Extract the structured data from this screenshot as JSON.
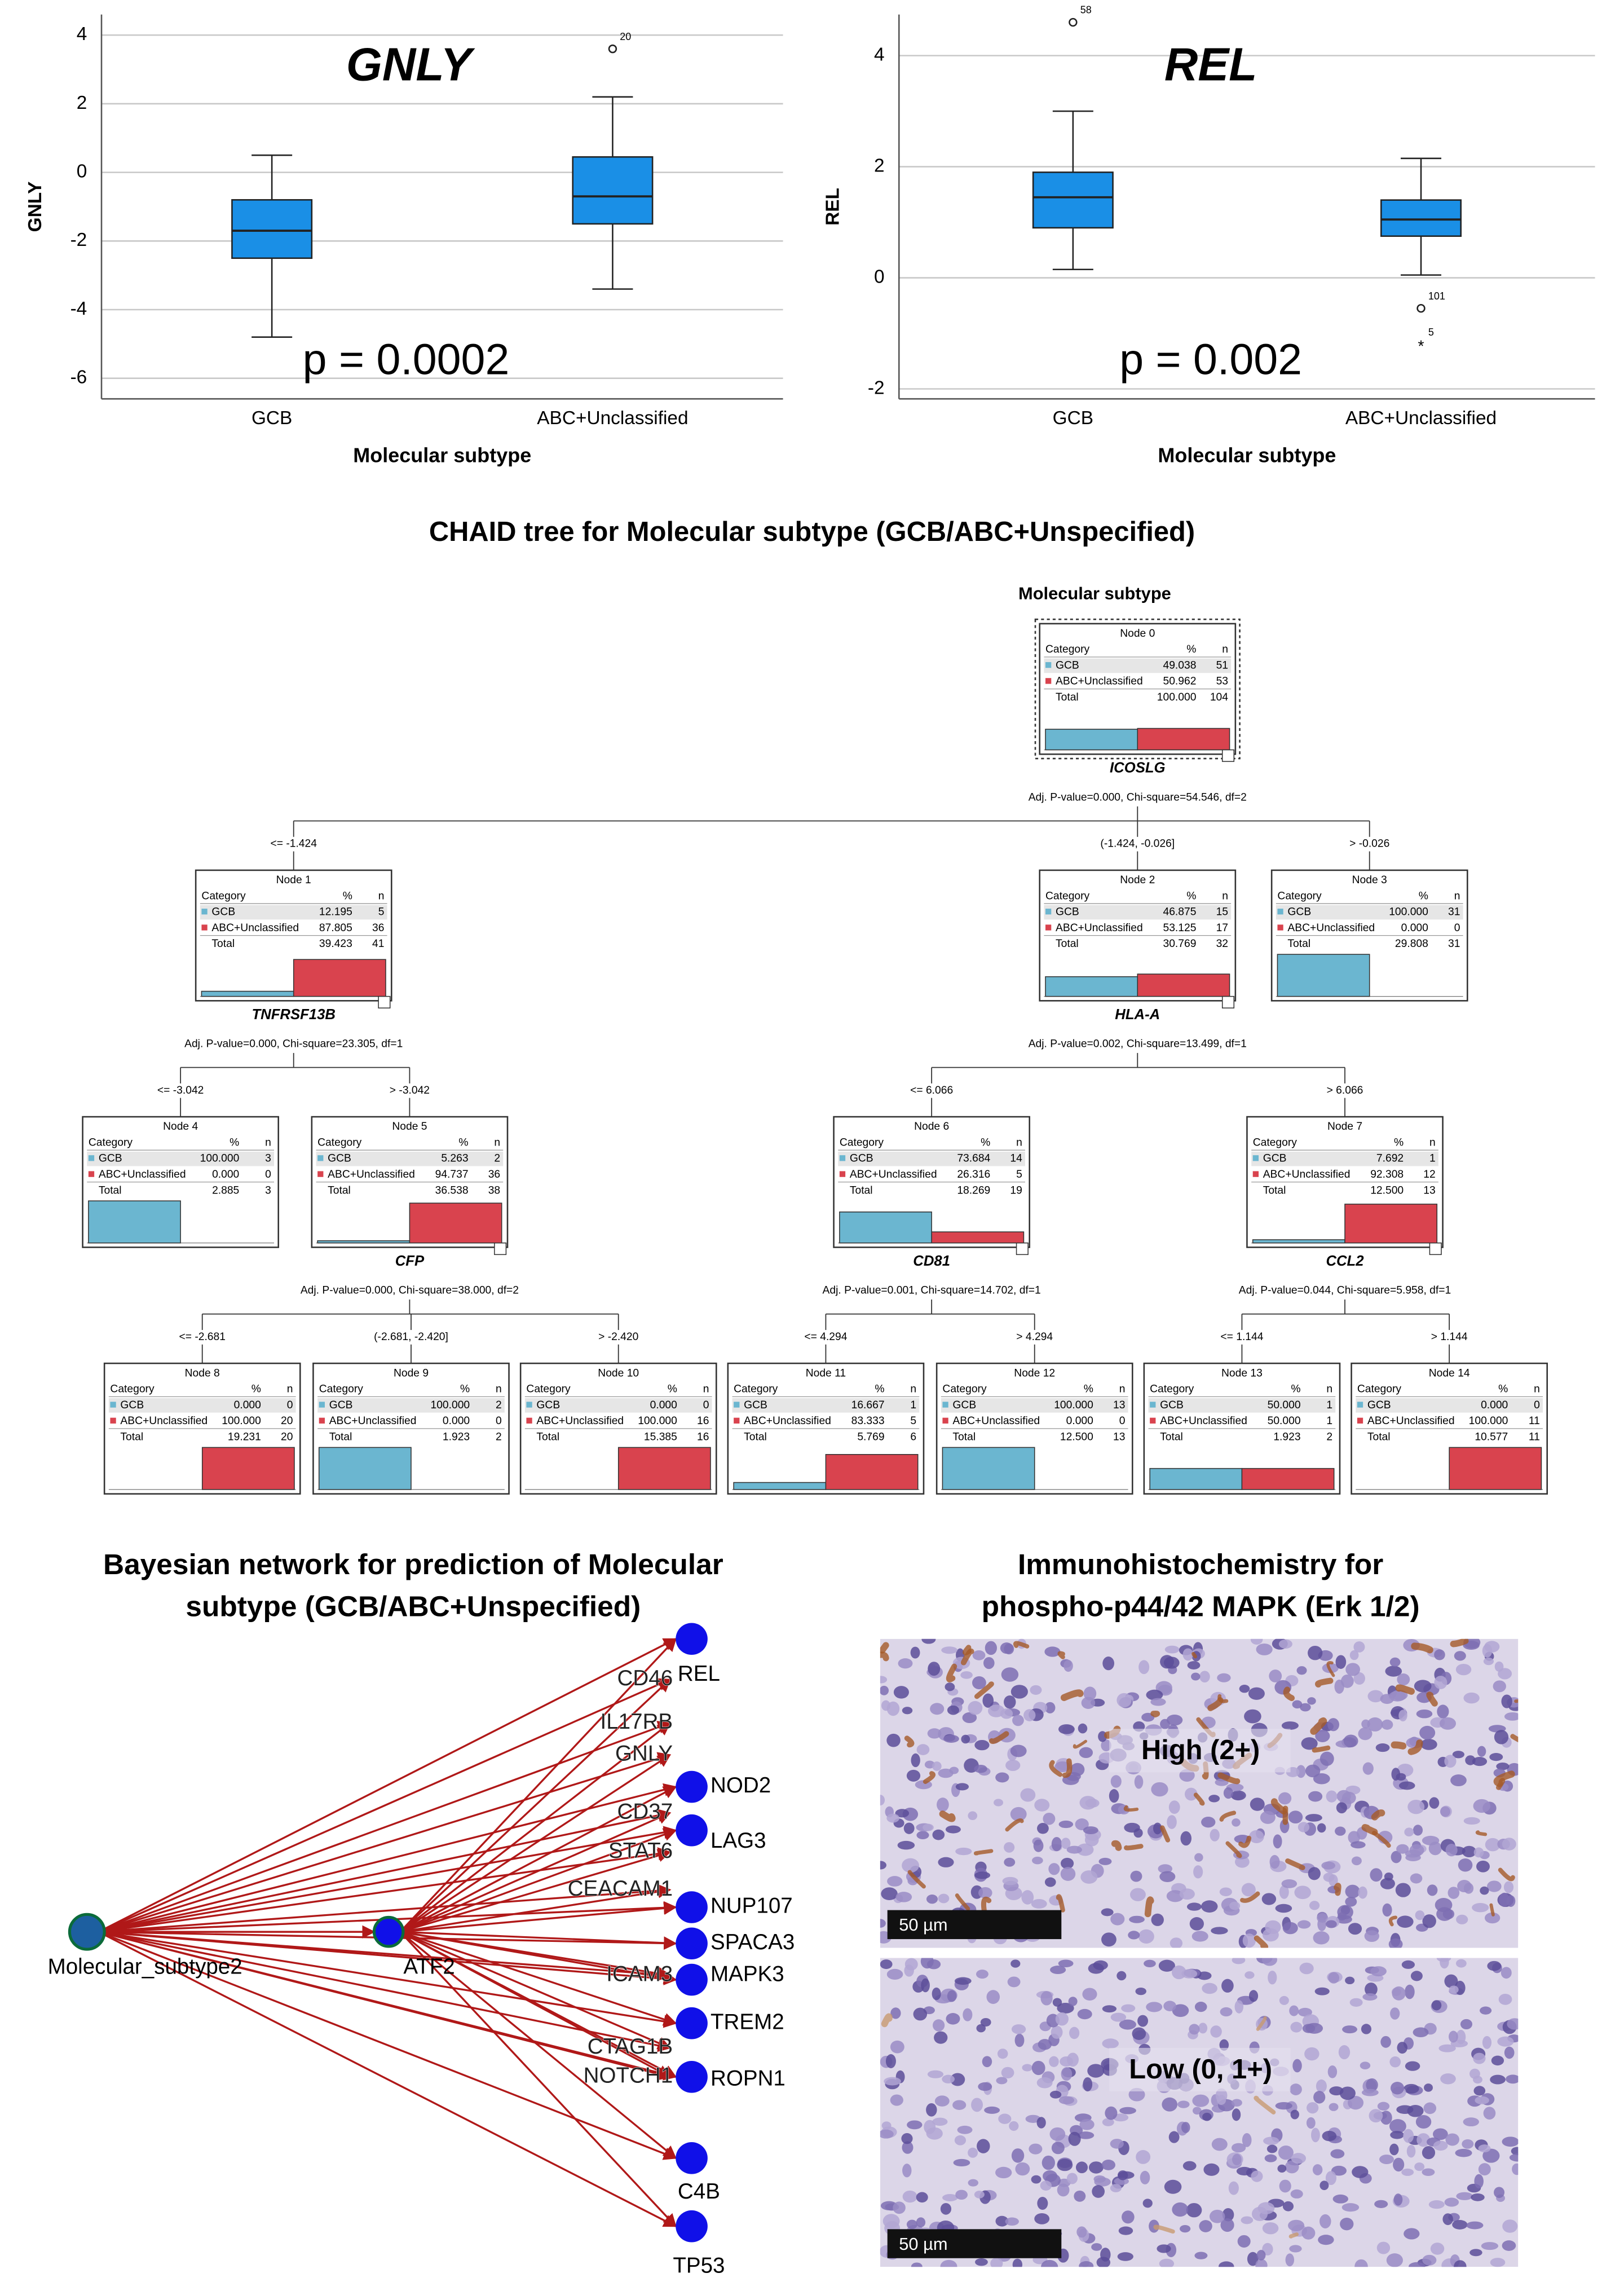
{
  "chart_data": [
    {
      "type": "box",
      "title": "GNLY",
      "y_label": "GNLY",
      "x_label": "Molecular subtype",
      "annotation": "p = 0.0002",
      "categories": [
        "GCB",
        "ABC+Unclassified"
      ],
      "color": "#1a8fe6",
      "grid": true,
      "ylim": [
        -6.6,
        4.6
      ],
      "yticks": [
        -6,
        -4,
        -2,
        0,
        2,
        4
      ],
      "boxes": [
        {
          "min": -4.8,
          "q1": -2.5,
          "median": -1.7,
          "q3": -0.8,
          "max": 0.5,
          "outliers": []
        },
        {
          "min": -3.4,
          "q1": -1.5,
          "median": -0.7,
          "q3": 0.45,
          "max": 2.2,
          "outliers": [
            {
              "value": 3.6,
              "case": "20",
              "marker": "circle"
            }
          ]
        }
      ]
    },
    {
      "type": "box",
      "title": "REL",
      "y_label": "REL",
      "x_label": "Molecular subtype",
      "annotation": "p = 0.002",
      "categories": [
        "GCB",
        "ABC+Unclassified"
      ],
      "color": "#1a8fe6",
      "grid": true,
      "ylim": [
        -2.18,
        4.74
      ],
      "yticks": [
        -2,
        0,
        2,
        4
      ],
      "boxes": [
        {
          "min": 0.15,
          "q1": 0.9,
          "median": 1.45,
          "q3": 1.9,
          "max": 3.0,
          "outliers": [
            {
              "value": 4.6,
              "case": "58",
              "marker": "circle"
            }
          ]
        },
        {
          "min": 0.05,
          "q1": 0.75,
          "median": 1.05,
          "q3": 1.4,
          "max": 2.15,
          "outliers": [
            {
              "value": -0.55,
              "case": "101",
              "marker": "circle"
            },
            {
              "value": -1.2,
              "case": "5",
              "marker": "star"
            }
          ]
        }
      ]
    }
  ],
  "chaid_tree": {
    "title": "CHAID tree for Molecular subtype (GCB/ABC+Unspecified)",
    "root_label": "Molecular subtype",
    "columns": [
      "Category",
      "%",
      "n"
    ],
    "colors": {
      "GCB": "#6bb6d0",
      "ABC+Unclassified": "#d9434e"
    },
    "nodes": [
      {
        "label": "Node 0",
        "rows": [
          [
            "GCB",
            "49.038",
            "51"
          ],
          [
            "ABC+Unclassified",
            "50.962",
            "53"
          ]
        ],
        "total": [
          "Total",
          "100.000",
          "104"
        ]
      },
      {
        "label": "Node 1",
        "rows": [
          [
            "GCB",
            "12.195",
            "5"
          ],
          [
            "ABC+Unclassified",
            "87.805",
            "36"
          ]
        ],
        "total": [
          "Total",
          "39.423",
          "41"
        ]
      },
      {
        "label": "Node 2",
        "rows": [
          [
            "GCB",
            "46.875",
            "15"
          ],
          [
            "ABC+Unclassified",
            "53.125",
            "17"
          ]
        ],
        "total": [
          "Total",
          "30.769",
          "32"
        ]
      },
      {
        "label": "Node 3",
        "rows": [
          [
            "GCB",
            "100.000",
            "31"
          ],
          [
            "ABC+Unclassified",
            "0.000",
            "0"
          ]
        ],
        "total": [
          "Total",
          "29.808",
          "31"
        ]
      },
      {
        "label": "Node 4",
        "rows": [
          [
            "GCB",
            "100.000",
            "3"
          ],
          [
            "ABC+Unclassified",
            "0.000",
            "0"
          ]
        ],
        "total": [
          "Total",
          "2.885",
          "3"
        ]
      },
      {
        "label": "Node 5",
        "rows": [
          [
            "GCB",
            "5.263",
            "2"
          ],
          [
            "ABC+Unclassified",
            "94.737",
            "36"
          ]
        ],
        "total": [
          "Total",
          "36.538",
          "38"
        ]
      },
      {
        "label": "Node 6",
        "rows": [
          [
            "GCB",
            "73.684",
            "14"
          ],
          [
            "ABC+Unclassified",
            "26.316",
            "5"
          ]
        ],
        "total": [
          "Total",
          "18.269",
          "19"
        ]
      },
      {
        "label": "Node 7",
        "rows": [
          [
            "GCB",
            "7.692",
            "1"
          ],
          [
            "ABC+Unclassified",
            "92.308",
            "12"
          ]
        ],
        "total": [
          "Total",
          "12.500",
          "13"
        ]
      },
      {
        "label": "Node 8",
        "rows": [
          [
            "GCB",
            "0.000",
            "0"
          ],
          [
            "ABC+Unclassified",
            "100.000",
            "20"
          ]
        ],
        "total": [
          "Total",
          "19.231",
          "20"
        ]
      },
      {
        "label": "Node 9",
        "rows": [
          [
            "GCB",
            "100.000",
            "2"
          ],
          [
            "ABC+Unclassified",
            "0.000",
            "0"
          ]
        ],
        "total": [
          "Total",
          "1.923",
          "2"
        ]
      },
      {
        "label": "Node 10",
        "rows": [
          [
            "GCB",
            "0.000",
            "0"
          ],
          [
            "ABC+Unclassified",
            "100.000",
            "16"
          ]
        ],
        "total": [
          "Total",
          "15.385",
          "16"
        ]
      },
      {
        "label": "Node 11",
        "rows": [
          [
            "GCB",
            "16.667",
            "1"
          ],
          [
            "ABC+Unclassified",
            "83.333",
            "5"
          ]
        ],
        "total": [
          "Total",
          "5.769",
          "6"
        ]
      },
      {
        "label": "Node 12",
        "rows": [
          [
            "GCB",
            "100.000",
            "13"
          ],
          [
            "ABC+Unclassified",
            "0.000",
            "0"
          ]
        ],
        "total": [
          "Total",
          "12.500",
          "13"
        ]
      },
      {
        "label": "Node 13",
        "rows": [
          [
            "GCB",
            "50.000",
            "1"
          ],
          [
            "ABC+Unclassified",
            "50.000",
            "1"
          ]
        ],
        "total": [
          "Total",
          "1.923",
          "2"
        ]
      },
      {
        "label": "Node 14",
        "rows": [
          [
            "GCB",
            "0.000",
            "0"
          ],
          [
            "ABC+Unclassified",
            "100.000",
            "11"
          ]
        ],
        "total": [
          "Total",
          "10.577",
          "11"
        ]
      }
    ],
    "splits": [
      {
        "parent": 0,
        "variable": "ICOSLG",
        "stats": "Adj. P-value=0.000, Chi-square=54.546, df=2",
        "children": [
          {
            "node": 1,
            "label": "<= -1.424"
          },
          {
            "node": 2,
            "label": "(-1.424, -0.026]"
          },
          {
            "node": 3,
            "label": "> -0.026"
          }
        ]
      },
      {
        "parent": 1,
        "variable": "TNFRSF13B",
        "stats": "Adj. P-value=0.000, Chi-square=23.305, df=1",
        "children": [
          {
            "node": 4,
            "label": "<= -3.042"
          },
          {
            "node": 5,
            "label": "> -3.042"
          }
        ]
      },
      {
        "parent": 2,
        "variable": "HLA-A",
        "stats": "Adj. P-value=0.002, Chi-square=13.499, df=1",
        "children": [
          {
            "node": 6,
            "label": "<= 6.066"
          },
          {
            "node": 7,
            "label": "> 6.066"
          }
        ]
      },
      {
        "parent": 5,
        "variable": "CFP",
        "stats": "Adj. P-value=0.000, Chi-square=38.000, df=2",
        "children": [
          {
            "node": 8,
            "label": "<= -2.681"
          },
          {
            "node": 9,
            "label": "(-2.681, -2.420]"
          },
          {
            "node": 10,
            "label": "> -2.420"
          }
        ]
      },
      {
        "parent": 6,
        "variable": "CD81",
        "stats": "Adj. P-value=0.001, Chi-square=14.702, df=1",
        "children": [
          {
            "node": 11,
            "label": "<= 4.294"
          },
          {
            "node": 12,
            "label": "> 4.294"
          }
        ]
      },
      {
        "parent": 7,
        "variable": "CCL2",
        "stats": "Adj. P-value=0.044, Chi-square=5.958, df=1",
        "children": [
          {
            "node": 13,
            "label": "<= 1.144"
          },
          {
            "node": 14,
            "label": "> 1.144"
          }
        ]
      }
    ]
  },
  "bayesian_network": {
    "title_lines": [
      "Bayesian network for prediction of Molecular",
      "subtype (GCB/ABC+Unspecified)"
    ],
    "sources": [
      "Molecular_subtype2",
      "ATF2"
    ],
    "targets": [
      "REL",
      "CD46",
      "IL17RB",
      "GNLY",
      "NOD2",
      "CD37",
      "LAG3",
      "STAT6",
      "CEACAM1",
      "NUP107",
      "SPACA3",
      "ICAM3",
      "MAPK3",
      "TREM2",
      "CTAG1B",
      "NOTCH1",
      "ROPN1",
      "C4B",
      "TP53"
    ]
  },
  "ihc": {
    "title_lines": [
      "Immunohistochemistry for",
      "phospho-p44/42 MAPK (Erk 1/2)"
    ],
    "panels": [
      {
        "label": "High (2+)",
        "scale": "50 µm"
      },
      {
        "label": "Low (0, 1+)",
        "scale": "50 µm"
      }
    ]
  }
}
